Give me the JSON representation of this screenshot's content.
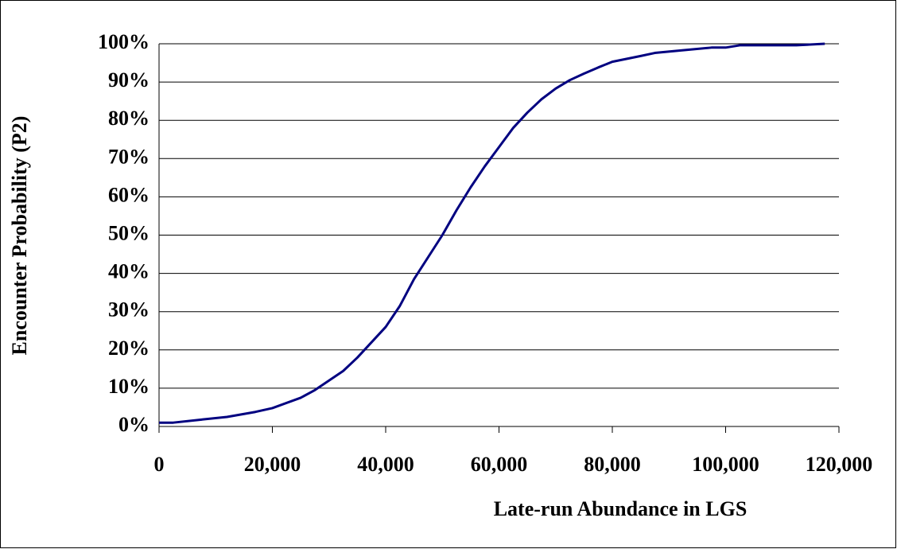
{
  "chart_data": {
    "type": "line",
    "x_label": "Late-run Abundance in LGS",
    "y_label": "Encounter Probability (P2)",
    "x": [
      0,
      2500,
      7500,
      12000,
      17000,
      20000,
      25000,
      27500,
      32500,
      35000,
      40000,
      42500,
      45000,
      50000,
      52500,
      55000,
      57500,
      60000,
      62500,
      65000,
      67500,
      70000,
      72500,
      75000,
      77500,
      80000,
      85000,
      87500,
      92500,
      97500,
      100000,
      102500,
      112500,
      117500
    ],
    "series": [
      {
        "color": "#000080",
        "values": [
          1,
          1,
          1.8,
          2.5,
          3.8,
          4.8,
          7.5,
          9.5,
          14.5,
          18,
          26,
          31.5,
          38.5,
          50,
          56.5,
          62.5,
          68,
          73,
          78,
          82,
          85.5,
          88.3,
          90.5,
          92.2,
          93.8,
          95.3,
          96.8,
          97.6,
          98.3,
          99,
          99,
          99.6,
          99.6,
          100
        ]
      }
    ],
    "xlim": [
      0,
      120000
    ],
    "xticks": [
      0,
      {
        "value": 20000,
        "label": "20,000"
      },
      {
        "value": 40000,
        "label": "40,000"
      },
      {
        "value": 60000,
        "label": "60,000"
      },
      {
        "value": 80000,
        "label": "80,000"
      },
      {
        "value": 100000,
        "label": "100,000"
      },
      {
        "value": 120000,
        "label": "120,000"
      }
    ],
    "ylim": [
      0,
      100
    ],
    "yticks": [
      {
        "value": 0,
        "label": "0%"
      },
      {
        "value": 10,
        "label": "10%"
      },
      {
        "value": 20,
        "label": "20%"
      },
      {
        "value": 30,
        "label": "30%"
      },
      {
        "value": 40,
        "label": "40%"
      },
      {
        "value": 50,
        "label": "50%"
      },
      {
        "value": 60,
        "label": "60%"
      },
      {
        "value": 70,
        "label": "70%"
      },
      {
        "value": 80,
        "label": "80%"
      },
      {
        "value": 90,
        "label": "90%"
      },
      {
        "value": 100,
        "label": "100%"
      }
    ],
    "grid": true
  }
}
